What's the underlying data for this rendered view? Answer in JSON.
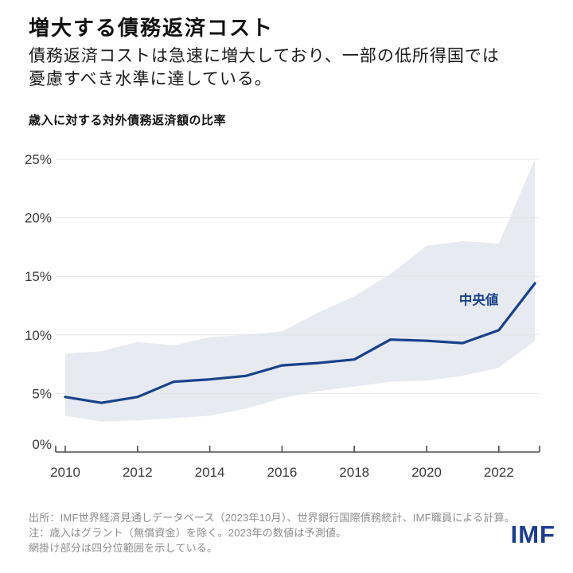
{
  "header": {
    "title": "増大する債務返済コスト",
    "subtitle_line1": "債務返済コストは急速に増大しており、一部の低所得国では",
    "subtitle_line2": "憂慮すべき水準に達している。"
  },
  "chart_data": {
    "type": "line",
    "title": "歳入に対する対外債務返済額の比率",
    "x": [
      2010,
      2011,
      2012,
      2013,
      2014,
      2015,
      2016,
      2017,
      2018,
      2019,
      2020,
      2021,
      2022,
      2023
    ],
    "series": [
      {
        "name": "中央値",
        "values": [
          4.7,
          4.2,
          4.7,
          6.0,
          6.2,
          6.5,
          7.4,
          7.6,
          7.9,
          9.6,
          9.5,
          9.3,
          10.4,
          14.4
        ]
      }
    ],
    "band": {
      "name": "四分位範囲",
      "upper": [
        8.4,
        8.6,
        9.4,
        9.1,
        9.8,
        10.0,
        10.3,
        11.9,
        13.3,
        15.2,
        17.6,
        18.0,
        17.8,
        25.0
      ],
      "lower": [
        3.1,
        2.6,
        2.7,
        2.9,
        3.1,
        3.7,
        4.6,
        5.2,
        5.6,
        6.0,
        6.1,
        6.5,
        7.2,
        9.5
      ]
    },
    "annotation": {
      "text": "中央値",
      "x": 2020.9,
      "y": 12.6
    },
    "xticks": [
      2010,
      2012,
      2014,
      2016,
      2018,
      2020,
      2022
    ],
    "yticks": [
      "0%",
      "5%",
      "10%",
      "15%",
      "20%",
      "25%"
    ],
    "ylim": [
      0,
      25
    ],
    "xlim": [
      2010,
      2023
    ],
    "grid": "horizontal",
    "legend_position": "inline-annotation",
    "colors": {
      "line": "#17418c",
      "band": "#e7eaf0",
      "grid": "#e2e4e8",
      "axis": "#4d4d4d",
      "tick_text": "#3a3a3a"
    }
  },
  "footer": {
    "line1": "出所：IMF世界経済見通しデータベース（2023年10月）、世界銀行国際債務統計、IMF職員による計算。",
    "line2": "注：歳入はグラント（無償資金）を除く。2023年の数値は予測値。",
    "line3": "網掛け部分は四分位範囲を示している。",
    "logo": "IMF"
  }
}
